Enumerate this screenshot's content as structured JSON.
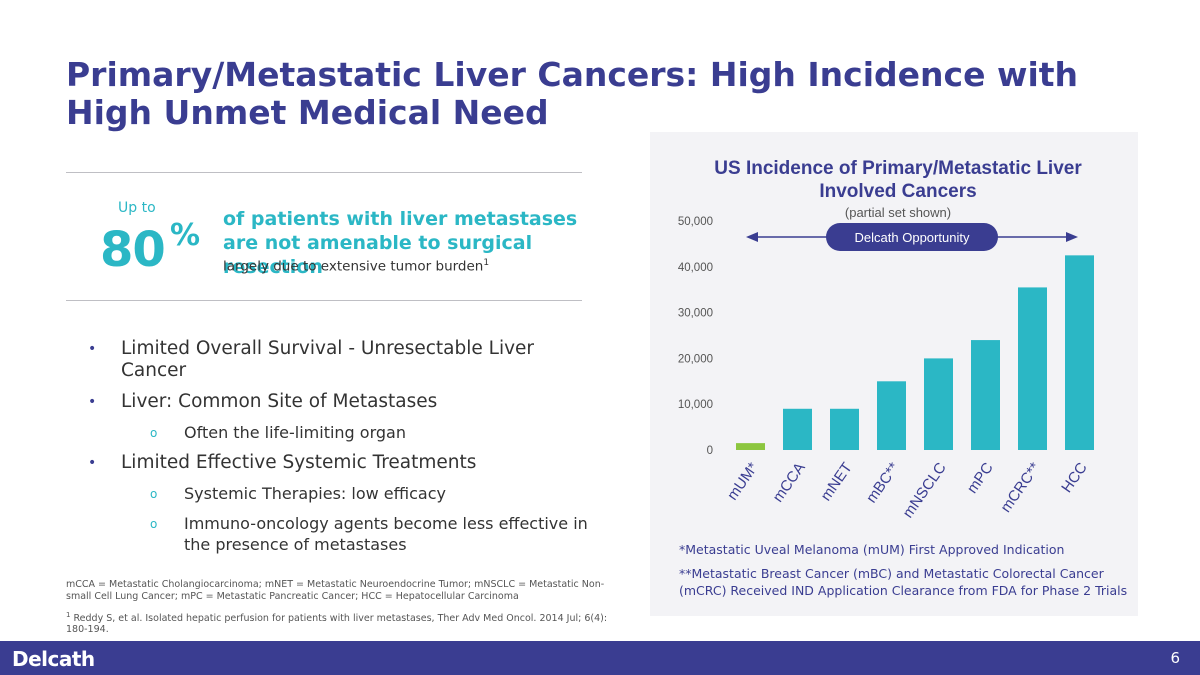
{
  "slide": {
    "title": "Primary/Metastatic Liver Cancers: High Incidence with High Unmet Medical Need",
    "page_number": "6"
  },
  "stat": {
    "prefix": "Up to",
    "value": "80",
    "unit": "%",
    "headline": "of patients with liver metastases are not amenable to surgical resection",
    "subtext": "largely due to extensive tumor burden",
    "footnote_ref": "1"
  },
  "bullets": [
    {
      "level": 1,
      "text": "Limited Overall Survival - Unresectable Liver Cancer"
    },
    {
      "level": 1,
      "text": "Liver: Common Site of Metastases"
    },
    {
      "level": 2,
      "text": "Often the life-limiting organ"
    },
    {
      "level": 1,
      "text": "Limited Effective Systemic Treatments"
    },
    {
      "level": 2,
      "text": "Systemic Therapies: low efficacy"
    },
    {
      "level": 2,
      "text": "Immuno-oncology agents become less effective in the presence of metastases"
    }
  ],
  "footnotes": {
    "abbreviations": "mCCA = Metastatic Cholangiocarcinoma; mNET = Metastatic Neuroendocrine Tumor; mNSCLC = Metastatic Non-small Cell Lung Cancer; mPC = Metastatic Pancreatic Cancer; HCC = Hepatocellular Carcinoma",
    "reference_marker": "1",
    "reference": "Reddy S, et al. Isolated hepatic perfusion for patients with liver metastases, Ther Adv Med Oncol. 2014 Jul; 6(4): 180-194."
  },
  "chart_notes": {
    "note1": "*Metastatic Uveal Melanoma (mUM) First Approved Indication",
    "note2": "**Metastatic Breast Cancer (mBC) and Metastatic Colorectal Cancer (mCRC) Received IND Application Clearance from FDA for Phase 2 Trials"
  },
  "brand": {
    "logo_text": "Delcath",
    "primary_color": "#3a3d91",
    "accent_color": "#2bb7c5",
    "highlight_color": "#8cc63f"
  },
  "chart_data": {
    "type": "bar",
    "title": "US Incidence of Primary/Metastatic Liver Involved Cancers",
    "subtitle": "(partial set shown)",
    "categories": [
      "mUM*",
      "mCCA",
      "mNET",
      "mBC**",
      "mNSCLC",
      "mPC",
      "mCRC**",
      "HCC"
    ],
    "values": [
      1500,
      9000,
      9000,
      15000,
      20000,
      24000,
      35500,
      42500
    ],
    "highlight_index": 0,
    "yticks": [
      0,
      10000,
      20000,
      30000,
      40000,
      50000
    ],
    "ytick_labels": [
      "0",
      "10,000",
      "20,000",
      "30,000",
      "40,000",
      "50,000"
    ],
    "ylim": [
      0,
      50000
    ],
    "annotation": "Delcath Opportunity",
    "xlabel": "",
    "ylabel": "",
    "grid": false
  }
}
